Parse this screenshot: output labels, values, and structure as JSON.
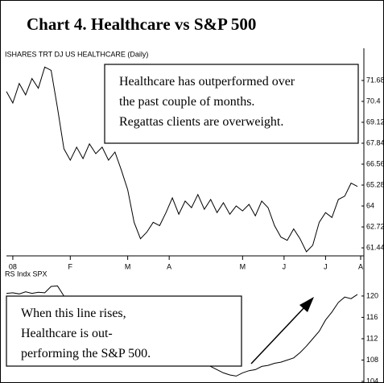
{
  "chart_data": [
    {
      "type": "line",
      "title": "Chart 4. Healthcare vs S&P 500",
      "label": "ISHARES TRT DJ US HEALTHCARE (Daily)",
      "annotation": [
        "Healthcare has outperformed over",
        "the past couple of months.",
        "Regattas clients are overweight."
      ],
      "x": [
        0,
        1,
        2,
        3,
        4,
        5,
        6,
        7,
        8,
        9,
        10,
        11,
        12,
        13,
        14,
        15,
        16,
        17,
        18,
        19,
        20,
        21,
        22,
        23,
        24,
        25,
        26,
        27,
        28,
        29,
        30,
        31,
        32,
        33,
        34,
        35,
        36,
        37,
        38,
        39,
        40,
        41,
        42,
        43,
        44,
        45,
        46,
        47,
        48,
        49,
        50,
        51,
        52,
        53,
        54,
        55
      ],
      "values": [
        71,
        70.3,
        71.5,
        70.8,
        71.8,
        71.2,
        72.5,
        72.3,
        70,
        67.5,
        66.8,
        67.6,
        66.9,
        67.8,
        67.2,
        67.6,
        66.8,
        67.3,
        66.2,
        65,
        63,
        62,
        62.4,
        63,
        62.8,
        63.6,
        64.5,
        63.5,
        64.3,
        63.9,
        64.7,
        63.8,
        64.4,
        63.6,
        64.2,
        63.5,
        64,
        63.7,
        64.1,
        63.4,
        64.3,
        63.9,
        62.8,
        62.1,
        61.9,
        62.6,
        62,
        61.2,
        61.6,
        63,
        63.6,
        63.3,
        64.4,
        64.6,
        65.4,
        65.2
      ],
      "color": "#000000",
      "xlim": [
        0,
        55.5
      ],
      "xticks": [
        {
          "value": 1,
          "label": "08"
        },
        {
          "value": 10,
          "label": "F"
        },
        {
          "value": 19,
          "label": "M"
        },
        {
          "value": 25.5,
          "label": "A"
        },
        {
          "value": 37,
          "label": "M"
        },
        {
          "value": 43.5,
          "label": "J"
        },
        {
          "value": 50,
          "label": "J"
        },
        {
          "value": 55.5,
          "label": "A"
        }
      ],
      "ylim": [
        60.95,
        73.55
      ],
      "yticks": [
        61.44,
        62.72,
        64,
        65.28,
        66.56,
        67.84,
        69.12,
        70.4,
        71.68
      ]
    },
    {
      "type": "line",
      "label": "RS Indx SPX",
      "annotation": [
        "When this line rises,",
        "Healthcare is out-",
        "performing the S&P 500."
      ],
      "x": [
        0,
        1,
        2,
        3,
        4,
        5,
        6,
        7,
        8,
        9,
        10,
        11,
        12,
        13,
        14,
        15,
        16,
        17,
        18,
        19,
        20,
        21,
        22,
        23,
        24,
        25,
        26,
        27,
        28,
        29,
        30,
        31,
        32,
        33,
        34,
        35,
        36,
        37,
        38,
        39,
        40,
        41,
        42,
        43,
        44,
        45,
        46,
        47,
        48,
        49,
        50,
        51,
        52,
        53,
        54,
        55
      ],
      "values": [
        120.5,
        120.6,
        120.4,
        120.8,
        120.5,
        120.7,
        120.6,
        121.8,
        121.9,
        120,
        119.5,
        119,
        118.5,
        118,
        117.5,
        117,
        116.4,
        115.8,
        115.2,
        114.6,
        114,
        113.4,
        112.8,
        112.2,
        111.6,
        111,
        110.4,
        109.8,
        109.2,
        108.6,
        108,
        107.4,
        106.8,
        106.2,
        105.6,
        105.2,
        105,
        105.6,
        106,
        106.2,
        106.8,
        107,
        107.4,
        107.6,
        108,
        108.4,
        109.4,
        110.6,
        112,
        113.4,
        115.5,
        117,
        118.8,
        119.8,
        119.5,
        120.3
      ],
      "color": "#000000",
      "xlim": [
        0,
        55.5
      ],
      "ylim": [
        104,
        122.7
      ],
      "yticks": [
        104,
        108,
        112,
        116,
        120
      ]
    }
  ]
}
